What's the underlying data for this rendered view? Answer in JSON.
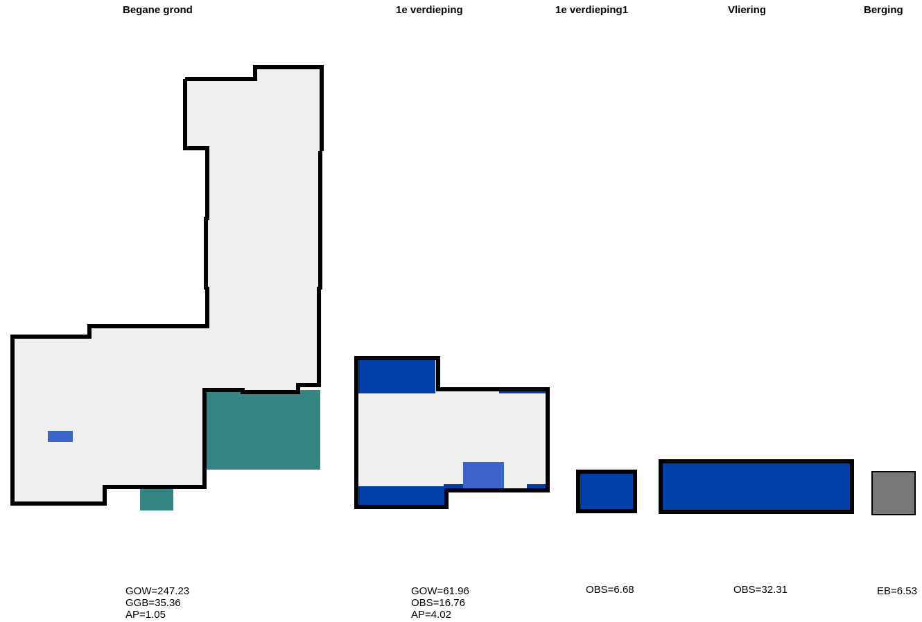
{
  "floors": [
    {
      "name": "Begane grond",
      "stats": [
        "GOW=247.23",
        "GGB=35.36",
        "AP=1.05"
      ]
    },
    {
      "name": "1e verdieping",
      "stats": [
        "GOW=61.96",
        "OBS=16.76",
        "AP=4.02"
      ]
    },
    {
      "name": "1e verdieping1",
      "stats": [
        "OBS=6.68"
      ]
    },
    {
      "name": "Vliering",
      "stats": [
        "OBS=32.31"
      ]
    },
    {
      "name": "Berging",
      "stats": [
        "EB=6.53"
      ]
    }
  ],
  "colors": {
    "floor_fill": "#efefef",
    "outline": "#000000",
    "obs": "#023ea7",
    "ap": "#3b63c8",
    "ggb": "#358583",
    "eb": "#787878"
  }
}
